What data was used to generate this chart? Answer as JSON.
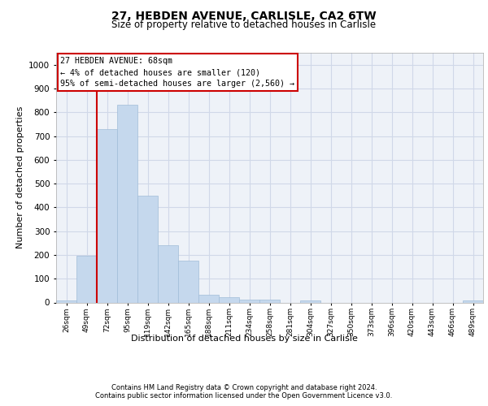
{
  "title1": "27, HEBDEN AVENUE, CARLISLE, CA2 6TW",
  "title2": "Size of property relative to detached houses in Carlisle",
  "xlabel": "Distribution of detached houses by size in Carlisle",
  "ylabel": "Number of detached properties",
  "categories": [
    "26sqm",
    "49sqm",
    "72sqm",
    "95sqm",
    "119sqm",
    "142sqm",
    "165sqm",
    "188sqm",
    "211sqm",
    "234sqm",
    "258sqm",
    "281sqm",
    "304sqm",
    "327sqm",
    "350sqm",
    "373sqm",
    "396sqm",
    "420sqm",
    "443sqm",
    "466sqm",
    "489sqm"
  ],
  "values": [
    10,
    195,
    730,
    830,
    448,
    240,
    175,
    32,
    22,
    12,
    12,
    0,
    8,
    0,
    0,
    0,
    0,
    0,
    0,
    0,
    8
  ],
  "bar_color": "#c5d8ed",
  "bar_edge_color": "#a0bcd8",
  "grid_color": "#d0d8e8",
  "background_color": "#eef2f8",
  "annotation_text_line1": "27 HEBDEN AVENUE: 68sqm",
  "annotation_text_line2": "← 4% of detached houses are smaller (120)",
  "annotation_text_line3": "95% of semi-detached houses are larger (2,560) →",
  "annotation_box_color": "#ffffff",
  "annotation_box_edge": "#cc0000",
  "vline_color": "#cc0000",
  "vline_x": 1.5,
  "footer1": "Contains HM Land Registry data © Crown copyright and database right 2024.",
  "footer2": "Contains public sector information licensed under the Open Government Licence v3.0.",
  "ylim": [
    0,
    1050
  ],
  "yticks": [
    0,
    100,
    200,
    300,
    400,
    500,
    600,
    700,
    800,
    900,
    1000
  ]
}
